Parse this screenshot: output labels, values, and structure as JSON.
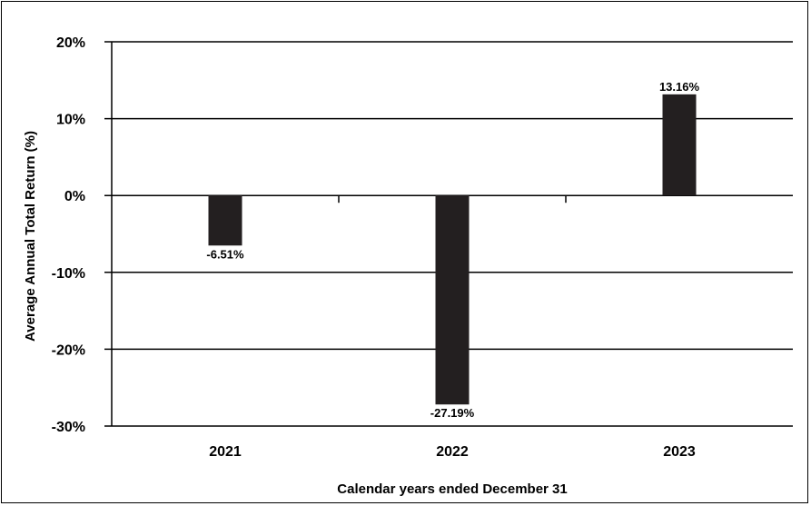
{
  "chart_data": {
    "type": "bar",
    "categories": [
      "2021",
      "2022",
      "2023"
    ],
    "values": [
      -6.51,
      -27.19,
      13.16
    ],
    "value_labels": [
      "-6.51%",
      "-27.19%",
      "13.16%"
    ],
    "title": "",
    "xlabel": "Calendar years ended December 31",
    "ylabel": "Average Annual Total Return (%)",
    "ylim": [
      -30,
      20
    ],
    "yticks": [
      20,
      10,
      0,
      -10,
      -20,
      -30
    ],
    "ytick_labels": [
      "20%",
      "10%",
      "0%",
      "-10%",
      "-20%",
      "-30%"
    ],
    "grid": true,
    "legend": "none",
    "bar_color": "#231f20"
  }
}
